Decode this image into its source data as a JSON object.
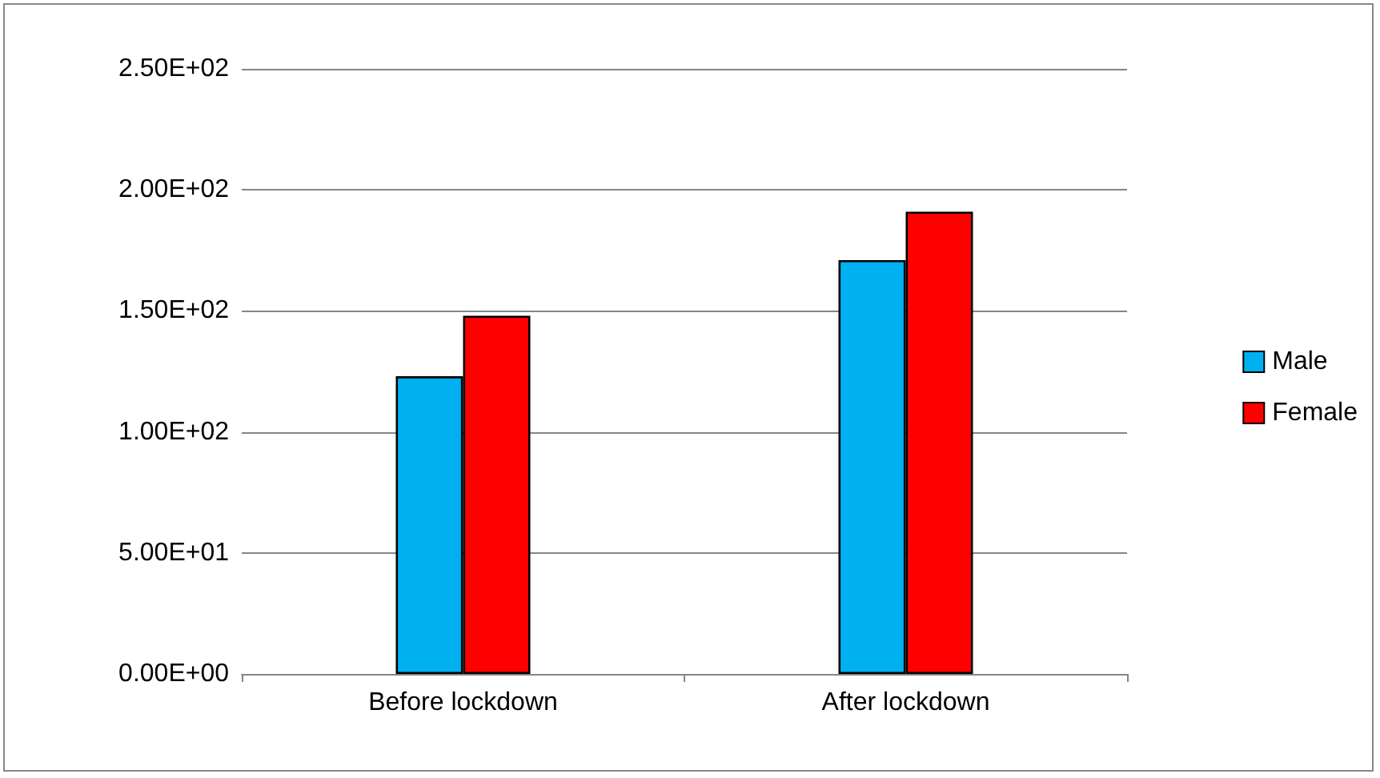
{
  "chart_data": {
    "type": "bar",
    "categories": [
      "Before lockdown",
      "After lockdown"
    ],
    "series": [
      {
        "name": "Male",
        "color": "#00b0f0",
        "values": [
          123,
          171
        ]
      },
      {
        "name": "Female",
        "color": "#ff0000",
        "values": [
          148,
          191
        ]
      }
    ],
    "ylim": [
      0,
      250
    ],
    "yticks": [
      {
        "value": 0,
        "label": "0.00E+00"
      },
      {
        "value": 50,
        "label": "5.00E+01"
      },
      {
        "value": 100,
        "label": "1.00E+02"
      },
      {
        "value": 150,
        "label": "1.50E+02"
      },
      {
        "value": 200,
        "label": "2.00E+02"
      },
      {
        "value": 250,
        "label": "2.50E+02"
      }
    ],
    "grid": "y",
    "legend": "right"
  }
}
